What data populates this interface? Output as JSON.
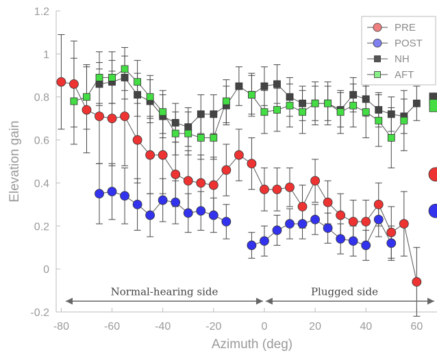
{
  "chart_data": {
    "type": "scatter",
    "xlabel": "Azimuth (deg)",
    "ylabel": "Elevation gain",
    "xlim": [
      -82,
      68
    ],
    "ylim": [
      -0.2,
      1.2
    ],
    "xticks": [
      "-80",
      "-60",
      "-40",
      "-20",
      "0",
      "20",
      "40",
      "60"
    ],
    "yticks": [
      "-0.2",
      "0",
      "0.2",
      "0.4",
      "0.6",
      "0.8",
      "1",
      "1.2"
    ],
    "grid": false,
    "legend_position": "top-right",
    "series": [
      {
        "name": "PRE",
        "marker": "circle",
        "color": "#ee3333",
        "legend_color": "#f08080",
        "x": [
          -80,
          -75,
          -70,
          -65,
          -60,
          -55,
          -50,
          -45,
          -40,
          -35,
          -30,
          -25,
          -20,
          -15,
          -10,
          -5,
          0,
          5,
          10,
          15,
          20,
          25,
          30,
          35,
          40,
          45,
          50,
          55,
          60
        ],
        "y": [
          0.87,
          0.86,
          0.74,
          0.71,
          0.7,
          0.71,
          0.6,
          0.53,
          0.53,
          0.44,
          0.41,
          0.4,
          0.39,
          0.46,
          0.53,
          0.49,
          0.37,
          0.37,
          0.38,
          0.29,
          0.41,
          0.31,
          0.25,
          0.22,
          0.22,
          0.3,
          0.17,
          0.21,
          -0.06
        ],
        "err": [
          0.22,
          0.2,
          0.2,
          0.22,
          0.22,
          0.23,
          0.2,
          0.18,
          0.18,
          0.15,
          0.14,
          0.13,
          0.13,
          0.12,
          0.12,
          0.12,
          0.1,
          0.1,
          0.09,
          0.1,
          0.1,
          0.1,
          0.1,
          0.1,
          0.1,
          0.1,
          0.12,
          0.15,
          0.16
        ]
      },
      {
        "name": "POST",
        "marker": "circle",
        "color": "#3333ee",
        "legend_color": "#8080f0",
        "x": [
          -65,
          -60,
          -55,
          -50,
          -45,
          -40,
          -35,
          -30,
          -25,
          -20,
          -15,
          -5,
          0,
          5,
          10,
          15,
          20,
          25,
          30,
          35,
          40,
          45,
          50
        ],
        "y": [
          0.35,
          0.36,
          0.34,
          0.3,
          0.25,
          0.32,
          0.31,
          0.26,
          0.27,
          0.25,
          0.22,
          0.11,
          0.13,
          0.18,
          0.21,
          0.21,
          0.23,
          0.19,
          0.14,
          0.13,
          0.11,
          0.23,
          0.12
        ],
        "err": [
          0.14,
          0.13,
          0.13,
          0.12,
          0.1,
          0.1,
          0.1,
          0.09,
          0.09,
          0.08,
          0.08,
          0.06,
          0.07,
          0.07,
          0.07,
          0.07,
          0.07,
          0.07,
          0.07,
          0.07,
          0.07,
          0.08,
          0.08
        ]
      },
      {
        "name": "NH",
        "marker": "square",
        "color": "#444444",
        "legend_color": "#555555",
        "x": [
          -65,
          -60,
          -55,
          -50,
          -45,
          -40,
          -35,
          -30,
          -25,
          -20,
          -15,
          -10,
          -5,
          0,
          5,
          10,
          15,
          20,
          25,
          30,
          35,
          40,
          45,
          50,
          55,
          60
        ],
        "y": [
          0.86,
          0.87,
          0.89,
          0.81,
          0.78,
          0.71,
          0.68,
          0.66,
          0.72,
          0.72,
          0.76,
          0.85,
          0.81,
          0.85,
          0.86,
          0.8,
          0.77,
          0.77,
          0.77,
          0.74,
          0.81,
          0.79,
          0.74,
          0.72,
          0.71,
          0.77
        ],
        "err": [
          0.1,
          0.1,
          0.1,
          0.1,
          0.1,
          0.1,
          0.09,
          0.09,
          0.09,
          0.09,
          0.09,
          0.09,
          0.09,
          0.09,
          0.09,
          0.09,
          0.08,
          0.08,
          0.08,
          0.08,
          0.08,
          0.08,
          0.08,
          0.08,
          0.08,
          0.08
        ]
      },
      {
        "name": "AFT",
        "marker": "square",
        "color": "#44dd44",
        "legend_color": "#88ee88",
        "x": [
          -75,
          -70,
          -65,
          -60,
          -55,
          -50,
          -45,
          -40,
          -35,
          -30,
          -25,
          -20,
          -15,
          -5,
          0,
          5,
          10,
          15,
          20,
          25,
          30,
          35,
          40,
          45,
          50,
          55
        ],
        "y": [
          0.78,
          0.8,
          0.89,
          0.89,
          0.93,
          0.87,
          0.8,
          0.73,
          0.63,
          0.63,
          0.61,
          0.61,
          0.78,
          0.81,
          0.73,
          0.74,
          0.76,
          0.73,
          0.77,
          0.77,
          0.73,
          0.76,
          0.73,
          0.69,
          0.61,
          0.69
        ],
        "err": [
          0.2,
          0.15,
          0.12,
          0.12,
          0.1,
          0.1,
          0.1,
          0.1,
          0.1,
          0.1,
          0.1,
          0.1,
          0.1,
          0.1,
          0.1,
          0.1,
          0.1,
          0.1,
          0.1,
          0.1,
          0.1,
          0.1,
          0.12,
          0.12,
          0.14,
          0.14
        ]
      }
    ],
    "edge_markers": [
      {
        "series": "NH",
        "y": 0.79
      },
      {
        "series": "AFT",
        "y": 0.76
      },
      {
        "series": "PRE",
        "y": 0.44
      },
      {
        "series": "POST",
        "y": 0.27
      }
    ],
    "annotations": {
      "left_region": "Normal-hearing side",
      "right_region": "Plugged side",
      "arrow_y": -0.15,
      "left_span": [
        -82,
        0
      ],
      "right_span": [
        0,
        68
      ]
    }
  }
}
